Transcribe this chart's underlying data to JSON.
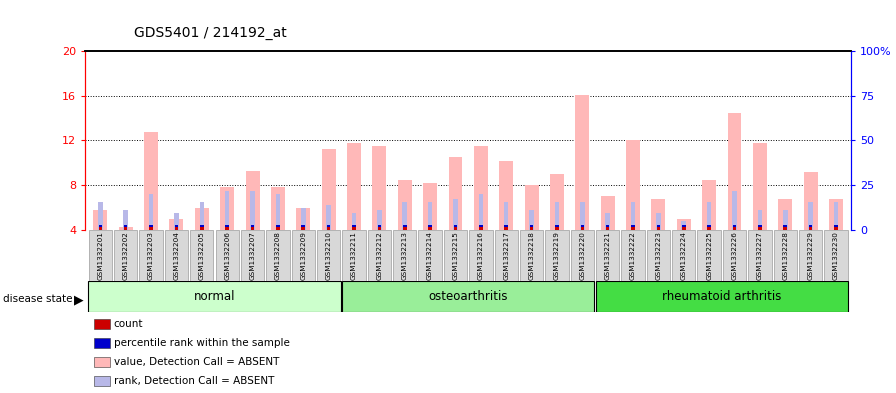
{
  "title": "GDS5401 / 214192_at",
  "samples": [
    "GSM1332201",
    "GSM1332202",
    "GSM1332203",
    "GSM1332204",
    "GSM1332205",
    "GSM1332206",
    "GSM1332207",
    "GSM1332208",
    "GSM1332209",
    "GSM1332210",
    "GSM1332211",
    "GSM1332212",
    "GSM1332213",
    "GSM1332214",
    "GSM1332215",
    "GSM1332216",
    "GSM1332217",
    "GSM1332218",
    "GSM1332219",
    "GSM1332220",
    "GSM1332221",
    "GSM1332222",
    "GSM1332223",
    "GSM1332224",
    "GSM1332225",
    "GSM1332226",
    "GSM1332227",
    "GSM1332228",
    "GSM1332229",
    "GSM1332230"
  ],
  "value_absent": [
    5.8,
    4.3,
    12.8,
    5.0,
    6.0,
    7.8,
    9.3,
    7.8,
    6.0,
    11.2,
    11.8,
    11.5,
    8.5,
    8.2,
    10.5,
    11.5,
    10.2,
    8.0,
    9.0,
    16.1,
    7.0,
    12.0,
    6.8,
    5.0,
    8.5,
    14.5,
    11.8,
    6.8,
    9.2,
    6.8
  ],
  "rank_absent": [
    6.5,
    5.8,
    7.2,
    5.5,
    6.5,
    7.5,
    7.5,
    7.2,
    6.0,
    6.2,
    5.5,
    5.8,
    6.5,
    6.5,
    6.8,
    7.2,
    6.5,
    5.8,
    6.5,
    6.5,
    5.5,
    6.5,
    5.5,
    4.8,
    6.5,
    7.5,
    5.8,
    5.8,
    6.5,
    6.5
  ],
  "groups": [
    {
      "label": "normal",
      "start": 0,
      "end": 10,
      "color": "#ccffcc"
    },
    {
      "label": "osteoarthritis",
      "start": 10,
      "end": 20,
      "color": "#99ee99"
    },
    {
      "label": "rheumatoid arthritis",
      "start": 20,
      "end": 30,
      "color": "#44dd44"
    }
  ],
  "ylim_left": [
    4,
    20
  ],
  "ylim_right": [
    0,
    100
  ],
  "yticks_left": [
    4,
    8,
    12,
    16,
    20
  ],
  "yticks_right": [
    0,
    25,
    50,
    75,
    100
  ],
  "ytick_right_labels": [
    "0",
    "25",
    "50",
    "75",
    "100%"
  ],
  "color_value_absent": "#ffb8b8",
  "color_rank_absent": "#b8b8e8",
  "color_count": "#cc0000",
  "color_percentile": "#0000cc",
  "background_color": "#ffffff",
  "legend_items": [
    {
      "color": "#cc0000",
      "label": "count"
    },
    {
      "color": "#0000cc",
      "label": "percentile rank within the sample"
    },
    {
      "color": "#ffb8b8",
      "label": "value, Detection Call = ABSENT"
    },
    {
      "color": "#b8b8e8",
      "label": "rank, Detection Call = ABSENT"
    }
  ]
}
